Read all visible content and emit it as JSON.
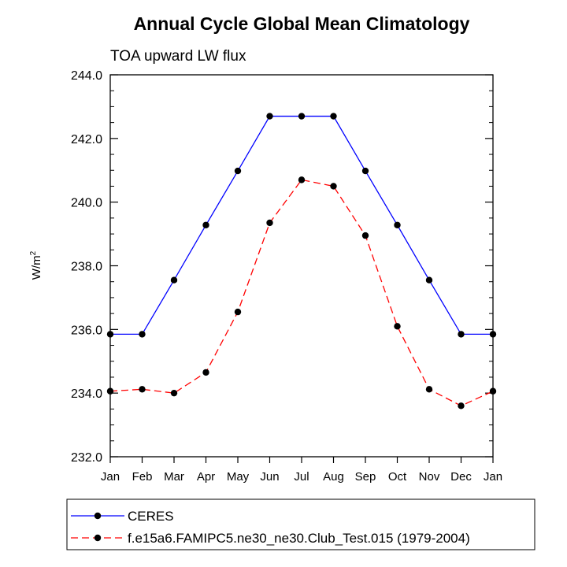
{
  "chart_data": {
    "type": "line",
    "title": "Annual Cycle Global Mean Climatology",
    "subtitle": "TOA upward LW flux",
    "ylabel_base": "W/m",
    "ylabel_sup": "2",
    "xlabel": "",
    "categories": [
      "Jan",
      "Feb",
      "Mar",
      "Apr",
      "May",
      "Jun",
      "Jul",
      "Aug",
      "Sep",
      "Oct",
      "Nov",
      "Dec",
      "Jan"
    ],
    "ylim": [
      232.0,
      244.0
    ],
    "yticks": [
      232.0,
      234.0,
      236.0,
      238.0,
      240.0,
      242.0,
      244.0
    ],
    "ytick_labels": [
      "232.0",
      "234.0",
      "236.0",
      "238.0",
      "240.0",
      "242.0",
      "244.0"
    ],
    "grid": false,
    "legend_position": "bottom",
    "series": [
      {
        "name": "CERES",
        "color": "#0000ff",
        "line_style": "solid",
        "marker_color": "#000000",
        "values": [
          235.85,
          235.85,
          237.55,
          239.28,
          240.98,
          242.7,
          242.7,
          242.7,
          240.98,
          239.28,
          237.55,
          235.85,
          235.85
        ]
      },
      {
        "name": "f.e15a6.FAMIPC5.ne30_ne30.Club_Test.015 (1979-2004)",
        "color": "#ff0000",
        "line_style": "dashed",
        "marker_color": "#000000",
        "values": [
          234.06,
          234.12,
          234.0,
          234.65,
          236.55,
          239.35,
          240.7,
          240.5,
          238.95,
          236.1,
          234.12,
          233.6,
          234.06
        ]
      }
    ]
  }
}
